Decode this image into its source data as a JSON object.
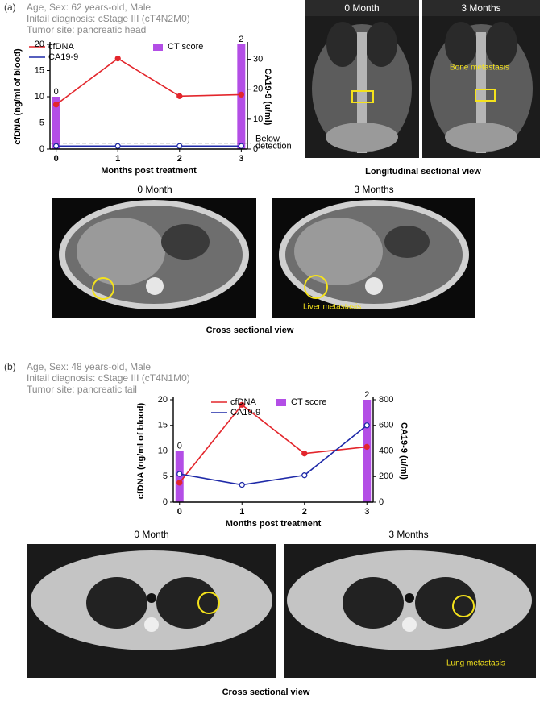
{
  "panels": [
    {
      "label": "(a)",
      "info": [
        "Age, Sex: 62 years-old, Male",
        "Initail diagnosis: cStage III (cT4N2M0)",
        "Tumor site: pancreatic head"
      ],
      "longitudinal": {
        "labels": [
          "0 Month",
          "3 Months"
        ],
        "annotation": "Bone metastasis",
        "caption": "Longitudinal sectional view"
      },
      "cross": {
        "labels": [
          "0 Month",
          "3 Months"
        ],
        "annotation": "Liver metastasis",
        "caption": "Cross sectional view"
      }
    },
    {
      "label": "(b)",
      "info": [
        "Age, Sex: 48 years-old, Male",
        "Initail diagnosis: cStage III (cT4N1M0)",
        "Tumor site: pancreatic tail"
      ],
      "cross": {
        "labels": [
          "0 Month",
          "3 Months"
        ],
        "annotation": "Lung metastasis",
        "caption": "Cross sectional view"
      }
    }
  ],
  "chart_data": [
    {
      "type": "combo",
      "x_label": "Months post treatment",
      "y_label": "cfDNA (ng/ml of blood)",
      "y2_label": "CA19-9 (u/ml)",
      "x": [
        0,
        1,
        2,
        3
      ],
      "xlim": [
        -0.1,
        3.1
      ],
      "xticks": [
        0,
        1,
        2,
        3
      ],
      "ylim": [
        0,
        20
      ],
      "yticks": [
        0,
        5,
        10,
        15,
        20
      ],
      "y2lim": [
        0,
        35
      ],
      "y2ticks": [
        0,
        10,
        20,
        30
      ],
      "series": [
        {
          "name": "CT score",
          "kind": "bar",
          "color": "#b34ee6",
          "values": [
            10,
            null,
            null,
            20
          ],
          "labels": [
            "0",
            null,
            null,
            "2"
          ]
        },
        {
          "name": "cfDNA",
          "kind": "line",
          "color": "#e3262c",
          "values": [
            8.5,
            17.3,
            10.1,
            10.4
          ]
        },
        {
          "name": "CA19-9",
          "kind": "line",
          "axis": "y2",
          "color": "#1f2aa8",
          "values": [
            1,
            1,
            1,
            1
          ]
        }
      ],
      "annotation": {
        "lines": [
          "Below",
          "detection"
        ],
        "value": 2
      }
    },
    {
      "type": "combo",
      "x_label": "Months post treatment",
      "y_label": "cfDNA (ng/ml of blood)",
      "y2_label": "CA19-9 (u/ml)",
      "x": [
        0,
        1,
        2,
        3
      ],
      "xlim": [
        -0.1,
        3.1
      ],
      "xticks": [
        0,
        1,
        2,
        3
      ],
      "ylim": [
        0,
        20
      ],
      "yticks": [
        0,
        5,
        10,
        15,
        20
      ],
      "y2lim": [
        0,
        800
      ],
      "y2ticks": [
        0,
        200,
        400,
        600,
        800
      ],
      "series": [
        {
          "name": "CT score",
          "kind": "bar",
          "color": "#b34ee6",
          "values": [
            10,
            null,
            null,
            20
          ],
          "labels": [
            "0",
            null,
            null,
            "2"
          ]
        },
        {
          "name": "cfDNA",
          "kind": "line",
          "color": "#e3262c",
          "values": [
            3.8,
            19,
            9.5,
            10.8
          ]
        },
        {
          "name": "CA19-9",
          "kind": "line",
          "axis": "y2",
          "color": "#1f2aa8",
          "values": [
            220,
            135,
            210,
            600
          ]
        }
      ]
    }
  ]
}
